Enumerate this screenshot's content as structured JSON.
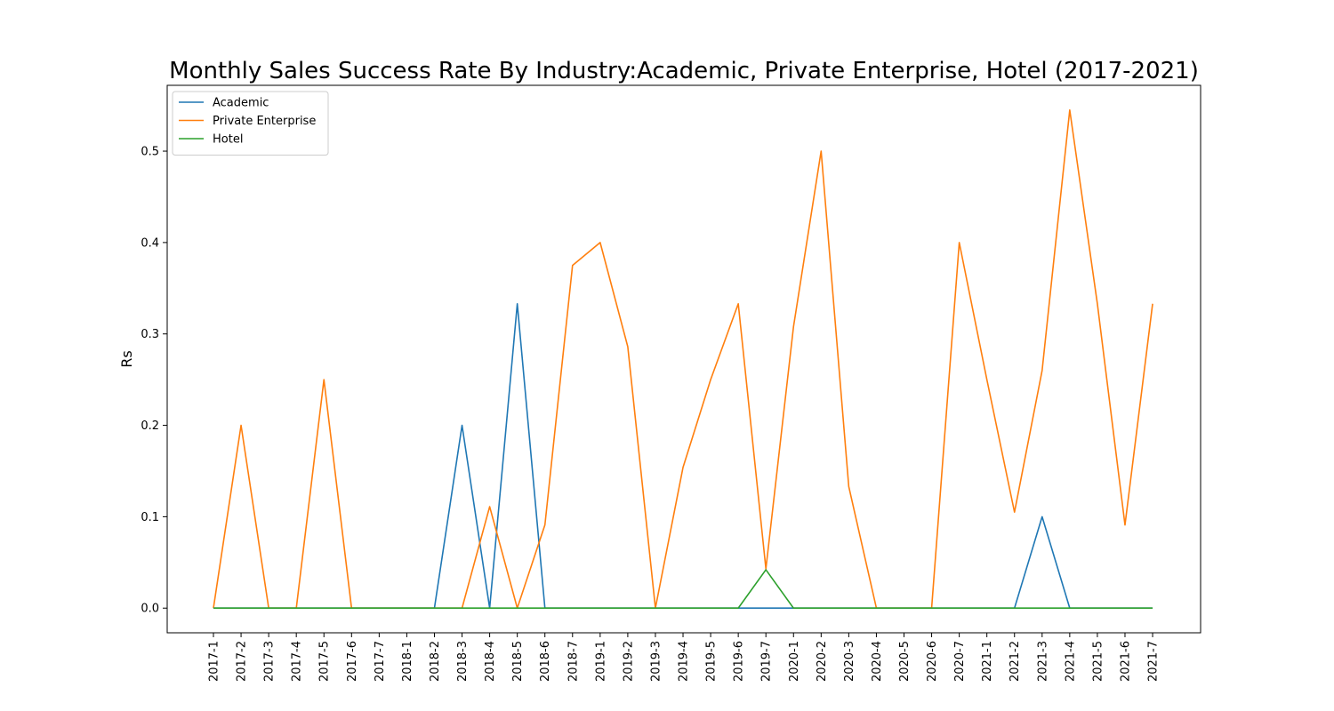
{
  "chart_data": {
    "type": "line",
    "title": "Monthly Sales Success Rate By Industry:Academic, Private Enterprise, Hotel (2017-2021)",
    "xlabel": "",
    "ylabel": "Rs",
    "ylim": [
      -0.027,
      0.572
    ],
    "yticks": [
      0.0,
      0.1,
      0.2,
      0.3,
      0.4,
      0.5
    ],
    "ytick_labels": [
      "0.0",
      "0.1",
      "0.2",
      "0.3",
      "0.4",
      "0.5"
    ],
    "grid": false,
    "legend_position": "top-left",
    "categories": [
      "2017-1",
      "2017-2",
      "2017-3",
      "2017-4",
      "2017-5",
      "2017-6",
      "2017-7",
      "2018-1",
      "2018-2",
      "2018-3",
      "2018-4",
      "2018-5",
      "2018-6",
      "2018-7",
      "2019-1",
      "2019-2",
      "2019-3",
      "2019-4",
      "2019-5",
      "2019-6",
      "2019-7",
      "2020-1",
      "2020-2",
      "2020-3",
      "2020-4",
      "2020-5",
      "2020-6",
      "2020-7",
      "2021-1",
      "2021-2",
      "2021-3",
      "2021-4",
      "2021-5",
      "2021-6",
      "2021-7"
    ],
    "series": [
      {
        "name": "Academic",
        "color": "#1f77b4",
        "values": [
          0,
          0,
          0,
          0,
          0,
          0,
          0,
          0,
          0,
          0.2,
          0,
          0.333,
          0,
          0,
          0,
          0,
          0,
          0,
          0,
          0,
          0,
          0,
          0,
          0,
          0,
          0,
          0,
          0,
          0,
          0,
          0.1,
          0,
          0,
          0,
          0
        ]
      },
      {
        "name": "Private Enterprise",
        "color": "#ff7f0e",
        "values": [
          0,
          0.2,
          0,
          0,
          0.25,
          0,
          0,
          0,
          0,
          0,
          0.111,
          0,
          0.091,
          0.375,
          0.4,
          0.286,
          0,
          0.154,
          0.25,
          0.333,
          0.043,
          0.308,
          0.5,
          0.133,
          0,
          0,
          0,
          0.4,
          0.25,
          0.105,
          0.26,
          0.545,
          0.333,
          0.091,
          0.333
        ]
      },
      {
        "name": "Hotel",
        "color": "#2ca02c",
        "values": [
          0,
          0,
          0,
          0,
          0,
          0,
          0,
          0,
          0,
          0,
          0,
          0,
          0,
          0,
          0,
          0,
          0,
          0,
          0,
          0,
          0.042,
          0,
          0,
          0,
          0,
          0,
          0,
          0,
          0,
          0,
          0,
          0,
          0,
          0,
          0
        ]
      }
    ]
  }
}
